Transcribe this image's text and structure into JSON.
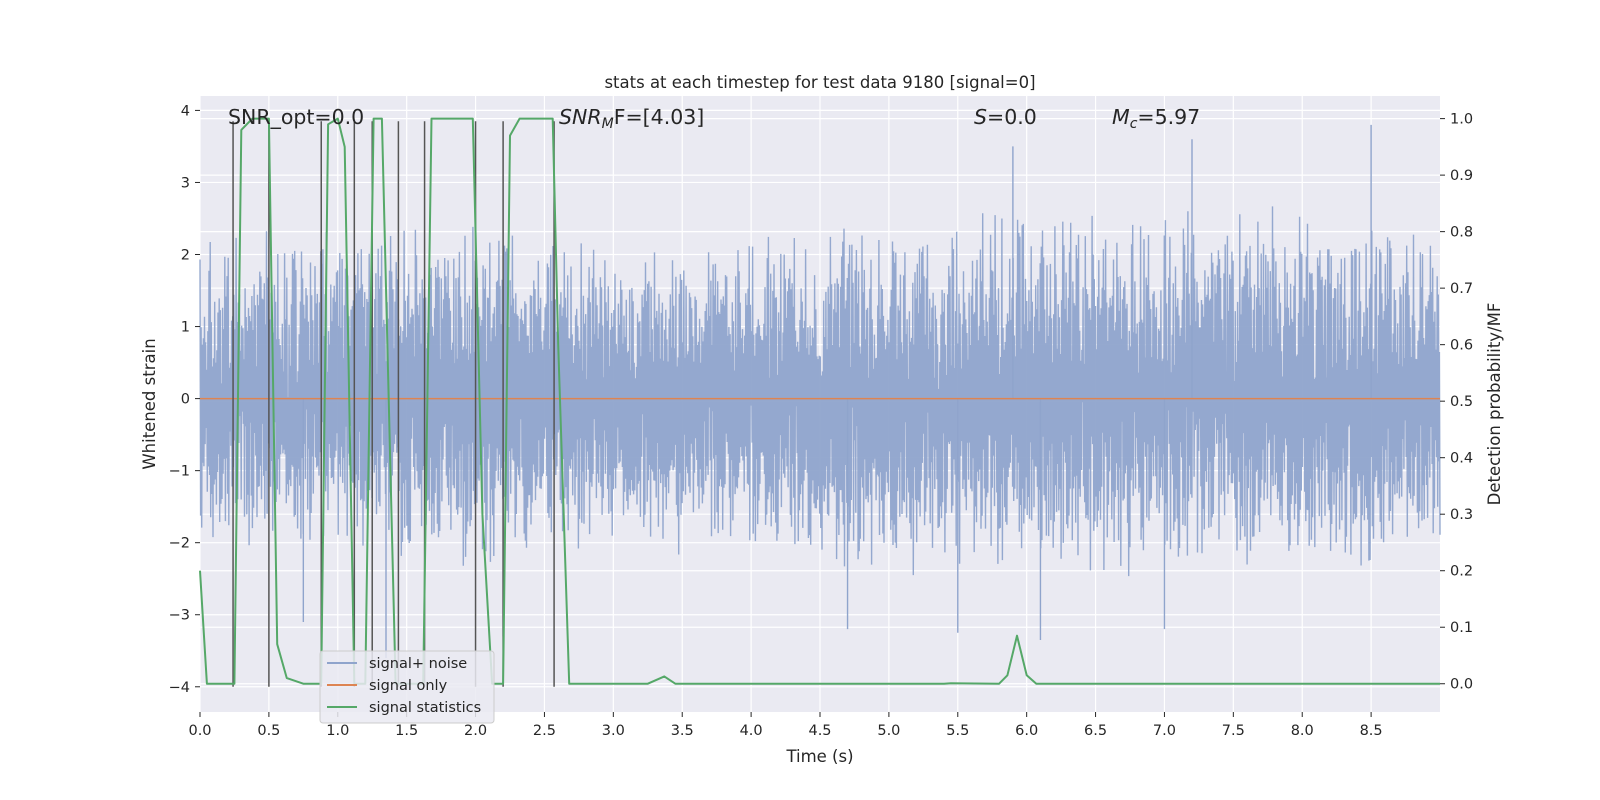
{
  "chart_data": {
    "type": "line",
    "title": "stats at each timestep for test data 9180 [signal=0]",
    "xlabel": "Time (s)",
    "ylabel": "Whitened strain",
    "y2label": "Detection probability/MF",
    "xlim": [
      0,
      9.0
    ],
    "ylim": [
      -4.35,
      4.2
    ],
    "y2lim": [
      -0.05,
      1.04
    ],
    "grid": true,
    "x_ticks": [
      "0.0",
      "0.5",
      "1.0",
      "1.5",
      "2.0",
      "2.5",
      "3.0",
      "3.5",
      "4.0",
      "4.5",
      "5.0",
      "5.5",
      "6.0",
      "6.5",
      "7.0",
      "7.5",
      "8.0",
      "8.5"
    ],
    "y_ticks": [
      "4",
      "3",
      "2",
      "1",
      "0",
      "−1",
      "−2",
      "−3",
      "−4"
    ],
    "y2_ticks": [
      "1.0",
      "0.9",
      "0.8",
      "0.7",
      "0.6",
      "0.5",
      "0.4",
      "0.3",
      "0.2",
      "0.1",
      "0.0"
    ],
    "annotations": {
      "snr_opt": "SNR_opt=0.0",
      "snr_mf_main": "SNR",
      "snr_mf_sub": "M",
      "snr_mf_rest": "F=[4.03]",
      "s_main": "S",
      "s_rest": "=0.0",
      "mc_main": "M",
      "mc_sub": "c",
      "mc_rest": "=5.97"
    },
    "legend": {
      "position": "lower-left",
      "entries": [
        "signal+ noise",
        "signal only",
        "signal statistics"
      ]
    },
    "colors": {
      "noise": "#8fa4cc",
      "signal": "#dd8452",
      "stats": "#55a868",
      "vlines": "#555555",
      "background": "#eaeaf2"
    },
    "series": [
      {
        "name": "signal+ noise",
        "kind": "noise-envelope",
        "envelope": {
          "x": [
            0,
            1.0,
            2.0,
            2.6,
            3.0,
            4.0,
            5.0,
            6.0,
            7.0,
            8.0,
            9.0
          ],
          "upper": [
            2.5,
            2.7,
            2.6,
            2.4,
            2.3,
            2.5,
            2.7,
            2.8,
            2.9,
            3.0,
            2.6
          ],
          "lower": [
            -2.2,
            -2.4,
            -2.5,
            -2.4,
            -2.2,
            -2.5,
            -2.8,
            -2.8,
            -2.6,
            -2.7,
            -2.4
          ]
        },
        "peaks": [
          {
            "x": 8.5,
            "y": 3.8
          },
          {
            "x": 5.9,
            "y": 3.5
          },
          {
            "x": 7.2,
            "y": 3.6
          },
          {
            "x": 4.7,
            "y": -3.2
          },
          {
            "x": 5.5,
            "y": -3.25
          },
          {
            "x": 6.1,
            "y": -3.35
          },
          {
            "x": 7.0,
            "y": -3.2
          },
          {
            "x": 1.35,
            "y": -3.6
          },
          {
            "x": 2.2,
            "y": -3.3
          },
          {
            "x": 0.75,
            "y": -3.1
          }
        ]
      },
      {
        "name": "signal only",
        "x": [
          0,
          9.0
        ],
        "y": [
          0,
          0
        ]
      },
      {
        "name": "signal statistics",
        "axis": "right",
        "x": [
          0,
          0.05,
          0.25,
          0.3,
          0.38,
          0.48,
          0.5,
          0.56,
          0.63,
          0.75,
          0.88,
          0.93,
          1.0,
          1.05,
          1.12,
          1.2,
          1.26,
          1.32,
          1.42,
          1.48,
          1.52,
          1.62,
          1.68,
          1.78,
          1.98,
          2.05,
          2.12,
          2.2,
          2.25,
          2.32,
          2.4,
          2.56,
          2.6,
          2.68,
          3.25,
          3.37,
          3.45,
          3.6,
          5.4,
          5.45,
          5.8,
          5.86,
          5.93,
          6.0,
          6.07,
          9.0
        ],
        "y": [
          0.2,
          0.0,
          0.0,
          0.98,
          1.0,
          1.0,
          1.0,
          0.07,
          0.01,
          0.0,
          0.0,
          0.99,
          1.0,
          0.95,
          0.0,
          0.0,
          1.0,
          1.0,
          0.0,
          0.0,
          0.0,
          0.0,
          1.0,
          1.0,
          1.0,
          0.3,
          0.0,
          0.0,
          0.97,
          1.0,
          1.0,
          1.0,
          0.6,
          0.0,
          0.0,
          0.013,
          0.0,
          0.0,
          0.0,
          0.001,
          0.0,
          0.015,
          0.085,
          0.015,
          0.0,
          0.0
        ]
      }
    ],
    "vertical_lines_x": [
      0.24,
      0.5,
      0.88,
      1.12,
      1.25,
      1.44,
      1.63,
      2.0,
      2.2,
      2.57
    ],
    "vertical_lines_yrange": [
      -4.0,
      3.85
    ]
  }
}
